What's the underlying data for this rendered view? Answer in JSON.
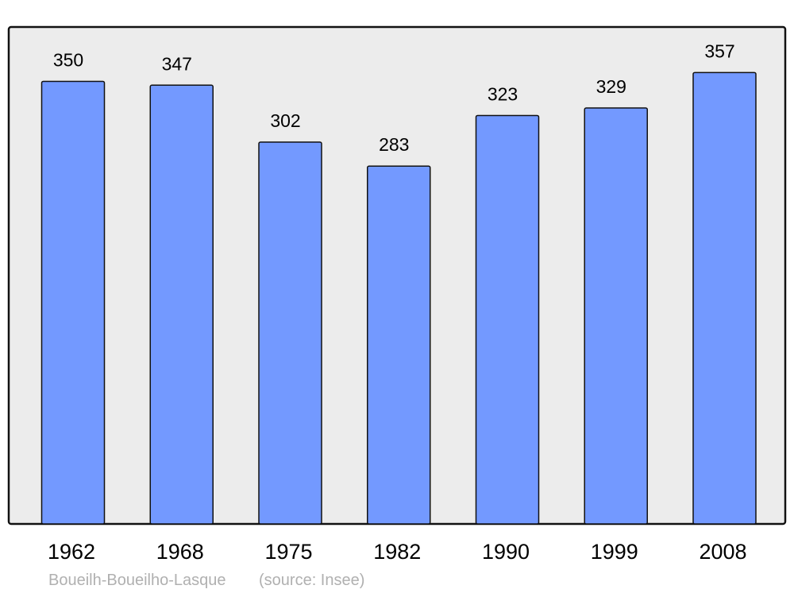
{
  "chart_data": {
    "type": "bar",
    "categories": [
      "1962",
      "1968",
      "1975",
      "1982",
      "1990",
      "1999",
      "2008"
    ],
    "values": [
      350,
      347,
      302,
      283,
      323,
      329,
      357
    ],
    "ylim": [
      0,
      393
    ],
    "grid": false,
    "bar_color": "#7399ff",
    "plot_background": "#ececec",
    "caption": "Boueilh-Boueilho-Lasque",
    "source": "(source: Insee)"
  }
}
